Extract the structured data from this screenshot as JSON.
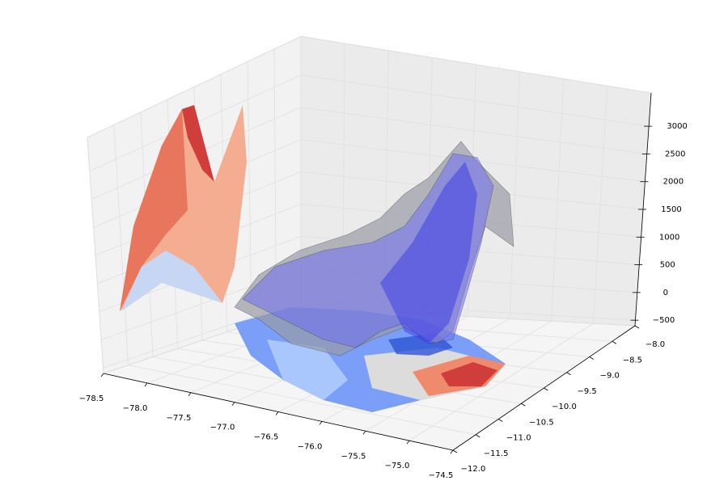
{
  "chart_data": {
    "type": "surface3d",
    "xlim": [
      -78.5,
      -74.5
    ],
    "xticks": [
      {
        "value": -78.5,
        "label": "−78.5"
      },
      {
        "value": -78.0,
        "label": "−78.0"
      },
      {
        "value": -77.5,
        "label": "−77.5"
      },
      {
        "value": -77.0,
        "label": "−77.0"
      },
      {
        "value": -76.5,
        "label": "−76.5"
      },
      {
        "value": -76.0,
        "label": "−76.0"
      },
      {
        "value": -75.5,
        "label": "−75.5"
      },
      {
        "value": -75.0,
        "label": "−75.0"
      },
      {
        "value": -74.5,
        "label": "−74.5"
      }
    ],
    "ylim": [
      -12,
      -8
    ],
    "yticks": [
      {
        "value": -12.0,
        "label": "−12.0"
      },
      {
        "value": -11.5,
        "label": "−11.5"
      },
      {
        "value": -11.0,
        "label": "−11.0"
      },
      {
        "value": -10.5,
        "label": "−10.5"
      },
      {
        "value": -10.0,
        "label": "−10.0"
      },
      {
        "value": -9.5,
        "label": "−9.5"
      },
      {
        "value": -9.0,
        "label": "−9.0"
      },
      {
        "value": -8.5,
        "label": "−8.5"
      },
      {
        "value": -8.0,
        "label": "−8.0"
      }
    ],
    "zlim": [
      -600,
      3600
    ],
    "zticks": [
      {
        "value": -500,
        "label": "−500"
      },
      0,
      500,
      1000,
      1500,
      2000,
      2500,
      3000
    ],
    "grid": true
  }
}
